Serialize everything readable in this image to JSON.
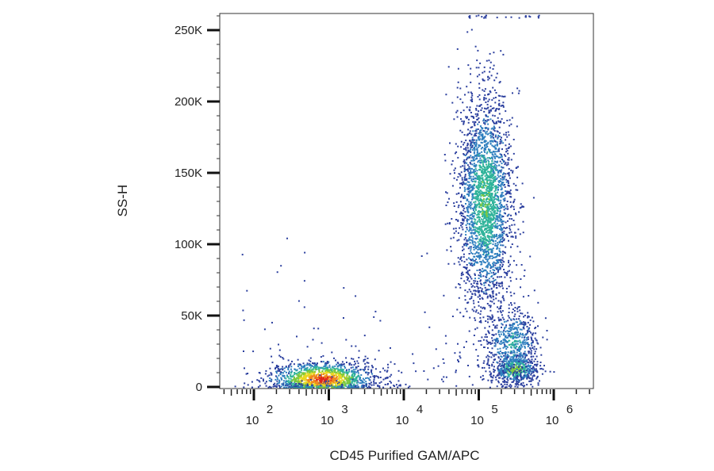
{
  "chart_data": {
    "type": "scatter",
    "title": "",
    "xlabel": "CD45 Purified GAM/APC",
    "ylabel": "SS-H",
    "x_scale": "log",
    "xlim": [
      20,
      3000000
    ],
    "ylim": [
      -3000,
      262144
    ],
    "x_ticks": [
      {
        "value": 100,
        "base": "10",
        "exp": "2"
      },
      {
        "value": 1000,
        "base": "10",
        "exp": "3"
      },
      {
        "value": 10000,
        "base": "10",
        "exp": "4"
      },
      {
        "value": 100000,
        "base": "10",
        "exp": "5"
      },
      {
        "value": 1000000,
        "base": "10",
        "exp": "6"
      }
    ],
    "y_ticks": [
      {
        "value": 0,
        "label": "0"
      },
      {
        "value": 50000,
        "label": "50K"
      },
      {
        "value": 100000,
        "label": "100K"
      },
      {
        "value": 150000,
        "label": "150K"
      },
      {
        "value": 200000,
        "label": "200K"
      },
      {
        "value": 250000,
        "label": "250K"
      }
    ],
    "grid": false,
    "legend": "none",
    "color_scale": [
      "#2b3f9e",
      "#2f7fbf",
      "#2fb39a",
      "#7cc83c",
      "#e8d81e",
      "#f08a1c",
      "#e0261c"
    ],
    "populations": [
      {
        "x_center": 800,
        "x_spread_decades": 0.35,
        "y_center": 6000,
        "y_spread": 6000,
        "count": 1400,
        "peak_density": 1.0
      },
      {
        "x_center": 120000,
        "x_spread_decades": 0.18,
        "y_center": 130000,
        "y_spread": 38000,
        "count": 2600,
        "peak_density": 0.45
      },
      {
        "x_center": 300000,
        "x_spread_decades": 0.15,
        "y_center": 13000,
        "y_spread": 5000,
        "count": 500,
        "peak_density": 0.55
      },
      {
        "x_center": 280000,
        "x_spread_decades": 0.18,
        "y_center": 30000,
        "y_spread": 14000,
        "count": 600,
        "peak_density": 0.3
      }
    ]
  }
}
